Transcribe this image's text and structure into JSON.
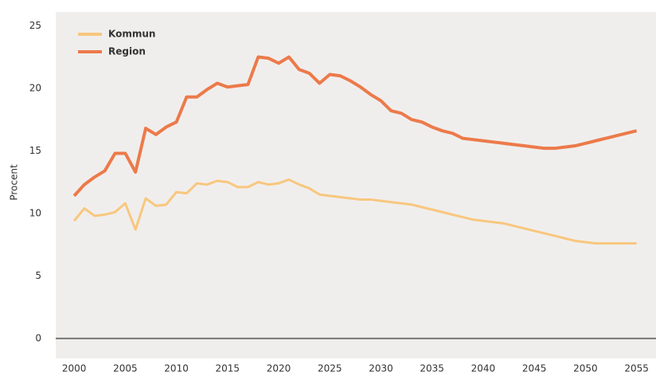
{
  "chart_data": {
    "type": "line",
    "ylabel": "Procent",
    "x": [
      2000,
      2001,
      2002,
      2003,
      2004,
      2005,
      2006,
      2007,
      2008,
      2009,
      2010,
      2011,
      2012,
      2013,
      2014,
      2015,
      2016,
      2017,
      2018,
      2019,
      2020,
      2021,
      2022,
      2023,
      2024,
      2025,
      2026,
      2027,
      2028,
      2029,
      2030,
      2031,
      2032,
      2033,
      2034,
      2035,
      2036,
      2037,
      2038,
      2039,
      2040,
      2041,
      2042,
      2043,
      2044,
      2045,
      2046,
      2047,
      2048,
      2049,
      2050,
      2051,
      2052,
      2053,
      2054,
      2055
    ],
    "series": [
      {
        "name": "Kommun",
        "color": "#f8c77e",
        "values": [
          9.4,
          10.4,
          9.8,
          9.9,
          10.1,
          10.8,
          8.7,
          11.2,
          10.6,
          10.7,
          11.7,
          11.6,
          12.4,
          12.3,
          12.6,
          12.5,
          12.1,
          12.1,
          12.5,
          12.3,
          12.4,
          12.7,
          12.3,
          12.0,
          11.5,
          11.4,
          11.3,
          11.2,
          11.1,
          11.1,
          11.0,
          10.9,
          10.8,
          10.7,
          10.5,
          10.3,
          10.1,
          9.9,
          9.7,
          9.5,
          9.4,
          9.3,
          9.2,
          9.0,
          8.8,
          8.6,
          8.4,
          8.2,
          8.0,
          7.8,
          7.7,
          7.6,
          7.6,
          7.6,
          7.6,
          7.6
        ]
      },
      {
        "name": "Region",
        "color": "#ec7a4a",
        "values": [
          11.4,
          12.3,
          12.9,
          13.4,
          14.8,
          14.8,
          13.3,
          16.8,
          16.3,
          16.9,
          17.3,
          19.3,
          19.3,
          19.9,
          20.4,
          20.1,
          20.2,
          20.3,
          22.5,
          22.4,
          22.0,
          22.5,
          21.5,
          21.2,
          20.4,
          21.1,
          21.0,
          20.6,
          20.1,
          19.5,
          19.0,
          18.2,
          18.0,
          17.5,
          17.3,
          16.9,
          16.6,
          16.4,
          16.0,
          15.9,
          15.8,
          15.7,
          15.6,
          15.5,
          15.4,
          15.3,
          15.2,
          15.2,
          15.3,
          15.4,
          15.6,
          15.8,
          16.0,
          16.2,
          16.4,
          16.6
        ]
      }
    ],
    "xlim": [
      1998.2,
      2056.9
    ],
    "ylim": [
      -1.6,
      26.1
    ],
    "xticks": [
      2000,
      2005,
      2010,
      2015,
      2020,
      2025,
      2030,
      2035,
      2040,
      2045,
      2050,
      2055
    ],
    "yticks": [
      0,
      5,
      10,
      15,
      20,
      25
    ],
    "legend": "upper-left",
    "background": "#f0eeed",
    "zero_line_color": "#777777"
  }
}
